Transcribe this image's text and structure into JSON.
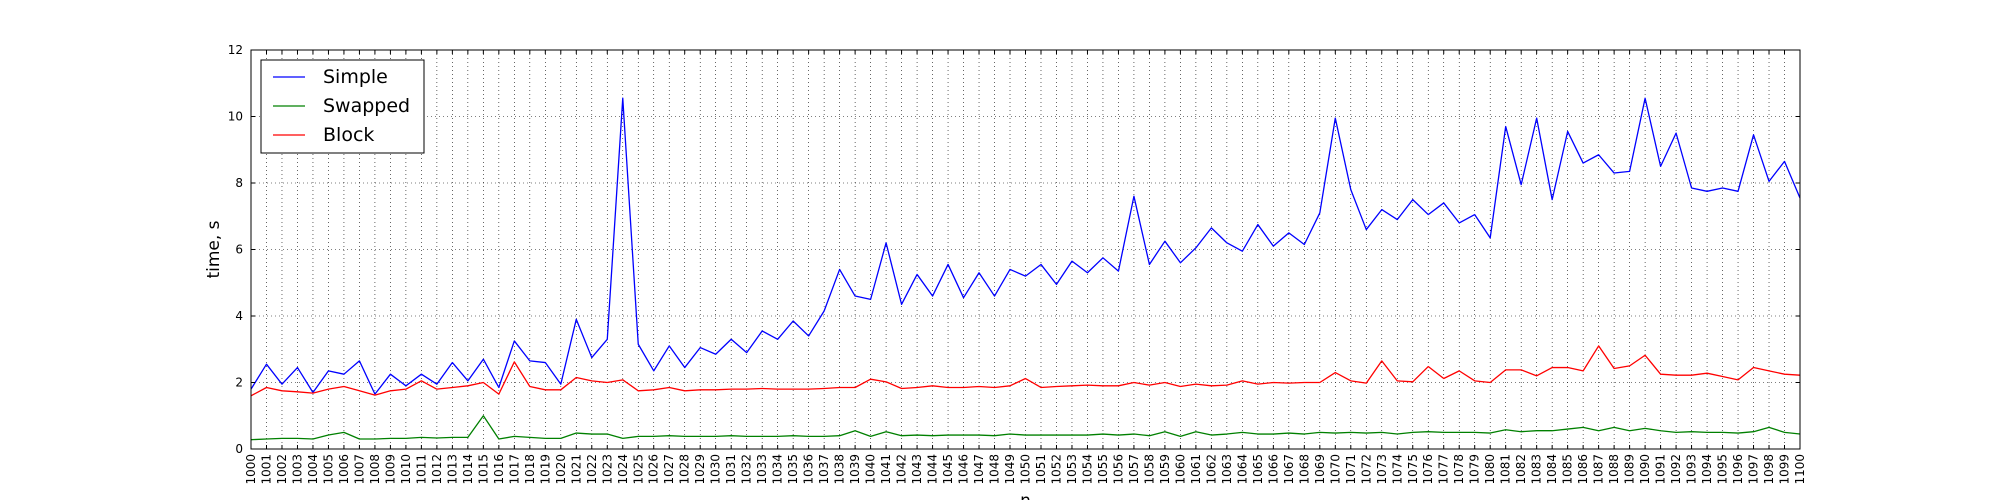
{
  "chart_data": {
    "type": "line",
    "xlabel": "n",
    "ylabel": "time, s",
    "xlim": [
      1000,
      1100
    ],
    "ylim": [
      0,
      12
    ],
    "yticks": [
      0,
      2,
      4,
      6,
      8,
      10,
      12
    ],
    "grid": true,
    "legend_position": "top-left",
    "x": [
      1000,
      1001,
      1002,
      1003,
      1004,
      1005,
      1006,
      1007,
      1008,
      1009,
      1010,
      1011,
      1012,
      1013,
      1014,
      1015,
      1016,
      1017,
      1018,
      1019,
      1020,
      1021,
      1022,
      1023,
      1024,
      1025,
      1026,
      1027,
      1028,
      1029,
      1030,
      1031,
      1032,
      1033,
      1034,
      1035,
      1036,
      1037,
      1038,
      1039,
      1040,
      1041,
      1042,
      1043,
      1044,
      1045,
      1046,
      1047,
      1048,
      1049,
      1050,
      1051,
      1052,
      1053,
      1054,
      1055,
      1056,
      1057,
      1058,
      1059,
      1060,
      1061,
      1062,
      1063,
      1064,
      1065,
      1066,
      1067,
      1068,
      1069,
      1070,
      1071,
      1072,
      1073,
      1074,
      1075,
      1076,
      1077,
      1078,
      1079,
      1080,
      1081,
      1082,
      1083,
      1084,
      1085,
      1086,
      1087,
      1088,
      1089,
      1090,
      1091,
      1092,
      1093,
      1094,
      1095,
      1096,
      1097,
      1098,
      1099,
      1100
    ],
    "series": [
      {
        "name": "Simple",
        "color": "#0000ff",
        "values": [
          1.8,
          2.55,
          1.95,
          2.45,
          1.7,
          2.35,
          2.25,
          2.65,
          1.65,
          2.25,
          1.9,
          2.25,
          1.95,
          2.6,
          2.05,
          2.7,
          1.85,
          3.25,
          2.65,
          2.6,
          1.95,
          3.9,
          2.75,
          3.3,
          10.55,
          3.15,
          2.35,
          3.1,
          2.45,
          3.05,
          2.85,
          3.3,
          2.9,
          3.55,
          3.3,
          3.85,
          3.4,
          4.15,
          5.4,
          4.6,
          4.5,
          6.2,
          4.35,
          5.25,
          4.6,
          5.55,
          4.55,
          5.3,
          4.6,
          5.4,
          5.2,
          5.55,
          4.95,
          5.65,
          5.3,
          5.75,
          5.35,
          7.6,
          5.55,
          6.25,
          5.6,
          6.05,
          6.65,
          6.2,
          5.95,
          6.75,
          6.1,
          6.5,
          6.15,
          7.1,
          9.95,
          7.8,
          6.6,
          7.2,
          6.9,
          7.5,
          7.05,
          7.4,
          6.8,
          7.05,
          6.35,
          9.7,
          7.95,
          9.95,
          7.5,
          9.55,
          8.6,
          8.85,
          8.3,
          8.35,
          10.55,
          8.5,
          9.5,
          7.85,
          7.75,
          7.85,
          7.75,
          9.45,
          8.05,
          8.65,
          7.55
        ]
      },
      {
        "name": "Swapped",
        "color": "#008000",
        "values": [
          0.28,
          0.3,
          0.32,
          0.32,
          0.3,
          0.42,
          0.5,
          0.3,
          0.3,
          0.32,
          0.32,
          0.35,
          0.33,
          0.35,
          0.35,
          1.0,
          0.3,
          0.38,
          0.35,
          0.32,
          0.32,
          0.48,
          0.45,
          0.45,
          0.32,
          0.38,
          0.38,
          0.4,
          0.38,
          0.38,
          0.38,
          0.4,
          0.38,
          0.38,
          0.38,
          0.4,
          0.38,
          0.38,
          0.4,
          0.55,
          0.38,
          0.52,
          0.4,
          0.42,
          0.4,
          0.42,
          0.42,
          0.42,
          0.4,
          0.45,
          0.42,
          0.42,
          0.42,
          0.42,
          0.42,
          0.45,
          0.42,
          0.45,
          0.4,
          0.52,
          0.38,
          0.52,
          0.42,
          0.45,
          0.5,
          0.45,
          0.45,
          0.48,
          0.45,
          0.5,
          0.48,
          0.5,
          0.48,
          0.5,
          0.45,
          0.5,
          0.52,
          0.5,
          0.5,
          0.5,
          0.48,
          0.58,
          0.52,
          0.55,
          0.55,
          0.6,
          0.65,
          0.55,
          0.65,
          0.55,
          0.62,
          0.55,
          0.5,
          0.52,
          0.5,
          0.5,
          0.48,
          0.52,
          0.65,
          0.5,
          0.45
        ]
      },
      {
        "name": "Block",
        "color": "#ff0000",
        "values": [
          1.6,
          1.85,
          1.75,
          1.72,
          1.68,
          1.8,
          1.88,
          1.75,
          1.62,
          1.75,
          1.8,
          2.05,
          1.8,
          1.85,
          1.9,
          2.0,
          1.65,
          2.62,
          1.88,
          1.78,
          1.78,
          2.15,
          2.05,
          2.0,
          2.08,
          1.75,
          1.78,
          1.85,
          1.75,
          1.78,
          1.78,
          1.8,
          1.8,
          1.82,
          1.8,
          1.8,
          1.8,
          1.82,
          1.85,
          1.85,
          2.1,
          2.02,
          1.82,
          1.85,
          1.9,
          1.85,
          1.85,
          1.88,
          1.85,
          1.9,
          2.12,
          1.85,
          1.88,
          1.9,
          1.92,
          1.9,
          1.9,
          2.0,
          1.92,
          2.0,
          1.88,
          1.95,
          1.9,
          1.92,
          2.05,
          1.95,
          2.0,
          1.98,
          2.0,
          2.0,
          2.3,
          2.05,
          1.98,
          2.65,
          2.05,
          2.02,
          2.48,
          2.12,
          2.35,
          2.05,
          2.0,
          2.38,
          2.38,
          2.2,
          2.45,
          2.45,
          2.35,
          3.1,
          2.42,
          2.5,
          2.82,
          2.25,
          2.22,
          2.22,
          2.28,
          2.18,
          2.08,
          2.45,
          2.35,
          2.25,
          2.22
        ]
      }
    ]
  }
}
